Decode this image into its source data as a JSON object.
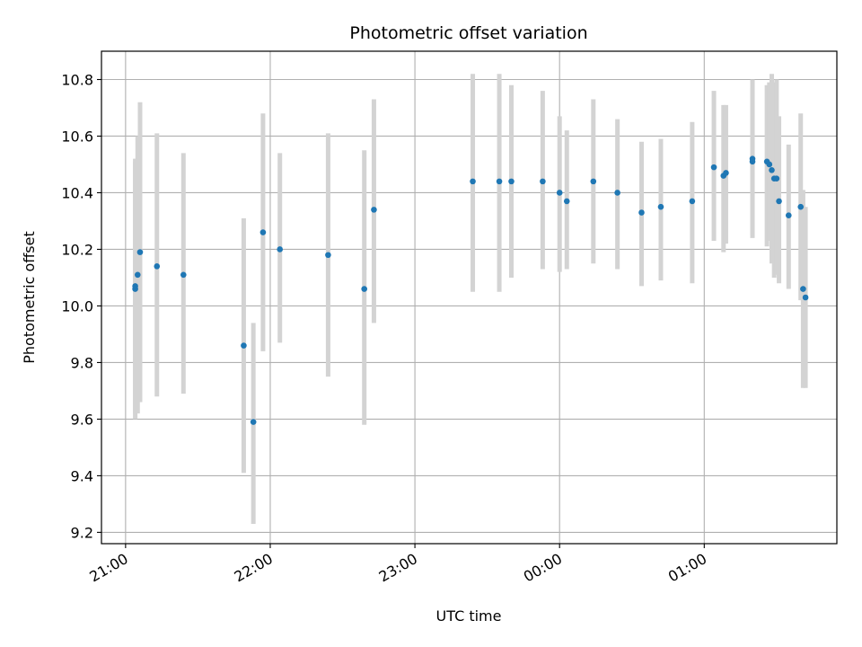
{
  "chart_data": {
    "type": "scatter",
    "title": "Photometric offset variation",
    "xlabel": "UTC time",
    "ylabel": "Photometric offset",
    "x_ticks": [
      "21:00",
      "22:00",
      "23:00",
      "00:00",
      "01:00"
    ],
    "y_ticks": [
      "9.2",
      "9.4",
      "9.6",
      "9.8",
      "10.0",
      "10.2",
      "10.4",
      "10.6",
      "10.8"
    ],
    "xlim": [
      "20:50",
      "25:55"
    ],
    "ylim": [
      9.16,
      10.9
    ],
    "grid": true,
    "colors": {
      "point": "#1f77b4",
      "error_bar": "#d3d3d3"
    },
    "series": [
      {
        "points": [
          {
            "t": "21:04",
            "y": 10.06,
            "lo": 9.6,
            "hi": 10.51
          },
          {
            "t": "21:04",
            "y": 10.07,
            "lo": 9.62,
            "hi": 10.52
          },
          {
            "t": "21:05",
            "y": 10.11,
            "lo": 9.62,
            "hi": 10.6
          },
          {
            "t": "21:06",
            "y": 10.19,
            "lo": 9.66,
            "hi": 10.72
          },
          {
            "t": "21:13",
            "y": 10.14,
            "lo": 9.68,
            "hi": 10.61
          },
          {
            "t": "21:24",
            "y": 10.11,
            "lo": 9.69,
            "hi": 10.54
          },
          {
            "t": "21:49",
            "y": 9.86,
            "lo": 9.41,
            "hi": 10.31
          },
          {
            "t": "21:53",
            "y": 9.59,
            "lo": 9.23,
            "hi": 9.94
          },
          {
            "t": "21:57",
            "y": 10.26,
            "lo": 9.84,
            "hi": 10.68
          },
          {
            "t": "22:04",
            "y": 10.2,
            "lo": 9.87,
            "hi": 10.54
          },
          {
            "t": "22:24",
            "y": 10.18,
            "lo": 9.75,
            "hi": 10.61
          },
          {
            "t": "22:39",
            "y": 10.06,
            "lo": 9.58,
            "hi": 10.55
          },
          {
            "t": "22:43",
            "y": 10.34,
            "lo": 9.94,
            "hi": 10.73
          },
          {
            "t": "23:24",
            "y": 10.44,
            "lo": 10.05,
            "hi": 10.82
          },
          {
            "t": "23:35",
            "y": 10.44,
            "lo": 10.05,
            "hi": 10.82
          },
          {
            "t": "23:40",
            "y": 10.44,
            "lo": 10.1,
            "hi": 10.78
          },
          {
            "t": "23:53",
            "y": 10.44,
            "lo": 10.13,
            "hi": 10.76
          },
          {
            "t": "24:00",
            "y": 10.4,
            "lo": 10.12,
            "hi": 10.67
          },
          {
            "t": "24:03",
            "y": 10.37,
            "lo": 10.13,
            "hi": 10.62
          },
          {
            "t": "24:14",
            "y": 10.44,
            "lo": 10.15,
            "hi": 10.73
          },
          {
            "t": "24:24",
            "y": 10.4,
            "lo": 10.13,
            "hi": 10.66
          },
          {
            "t": "24:34",
            "y": 10.33,
            "lo": 10.07,
            "hi": 10.58
          },
          {
            "t": "24:42",
            "y": 10.35,
            "lo": 10.09,
            "hi": 10.59
          },
          {
            "t": "24:55",
            "y": 10.37,
            "lo": 10.08,
            "hi": 10.65
          },
          {
            "t": "25:04",
            "y": 10.49,
            "lo": 10.23,
            "hi": 10.76
          },
          {
            "t": "25:08",
            "y": 10.46,
            "lo": 10.19,
            "hi": 10.71
          },
          {
            "t": "25:09",
            "y": 10.47,
            "lo": 10.22,
            "hi": 10.71
          },
          {
            "t": "25:20",
            "y": 10.52,
            "lo": 10.24,
            "hi": 10.8
          },
          {
            "t": "25:20",
            "y": 10.51,
            "lo": 10.25,
            "hi": 10.77
          },
          {
            "t": "25:26",
            "y": 10.51,
            "lo": 10.21,
            "hi": 10.78
          },
          {
            "t": "25:27",
            "y": 10.5,
            "lo": 10.23,
            "hi": 10.79
          },
          {
            "t": "25:28",
            "y": 10.48,
            "lo": 10.15,
            "hi": 10.82
          },
          {
            "t": "25:29",
            "y": 10.45,
            "lo": 10.1,
            "hi": 10.79
          },
          {
            "t": "25:30",
            "y": 10.45,
            "lo": 10.11,
            "hi": 10.8
          },
          {
            "t": "25:31",
            "y": 10.37,
            "lo": 10.08,
            "hi": 10.67
          },
          {
            "t": "25:35",
            "y": 10.32,
            "lo": 10.06,
            "hi": 10.57
          },
          {
            "t": "25:40",
            "y": 10.35,
            "lo": 10.02,
            "hi": 10.68
          },
          {
            "t": "25:41",
            "y": 10.06,
            "lo": 9.71,
            "hi": 10.41
          },
          {
            "t": "25:42",
            "y": 10.03,
            "lo": 9.71,
            "hi": 10.35
          }
        ]
      }
    ]
  }
}
